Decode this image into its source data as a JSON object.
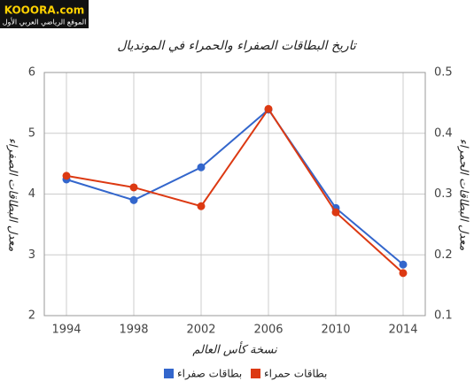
{
  "logo": {
    "name": "KOOORA.com",
    "tagline": "الموقع الرياضي العربي الأول"
  },
  "chart_data": {
    "type": "line",
    "title": "تاريخ البطاقات الصفراء والحمراء في المونديال",
    "x_label": "نسخة كأس العالم",
    "y_label": "معدل البطاقات الصفراء",
    "y2_label": "معدل البطاقات الحمراء",
    "categories": [
      "1994",
      "1998",
      "2002",
      "2006",
      "2010",
      "2014"
    ],
    "ylim": [
      2,
      6
    ],
    "yticks": [
      2,
      3,
      4,
      5,
      6
    ],
    "y2lim": [
      0.1,
      0.5
    ],
    "y2ticks": [
      0.1,
      0.2,
      0.3,
      0.4,
      0.5
    ],
    "grid": true,
    "legend": "bottom",
    "series": [
      {
        "name": "بطاقات صفراء",
        "color": "#3366cc",
        "values": [
          4.24,
          3.9,
          4.44,
          5.39,
          3.77,
          2.84
        ]
      },
      {
        "name": "بطاقات حمراء",
        "color": "#dc3912",
        "axis": "y2",
        "values": [
          0.33,
          0.311,
          0.28,
          0.44,
          0.27,
          0.17
        ]
      }
    ]
  }
}
